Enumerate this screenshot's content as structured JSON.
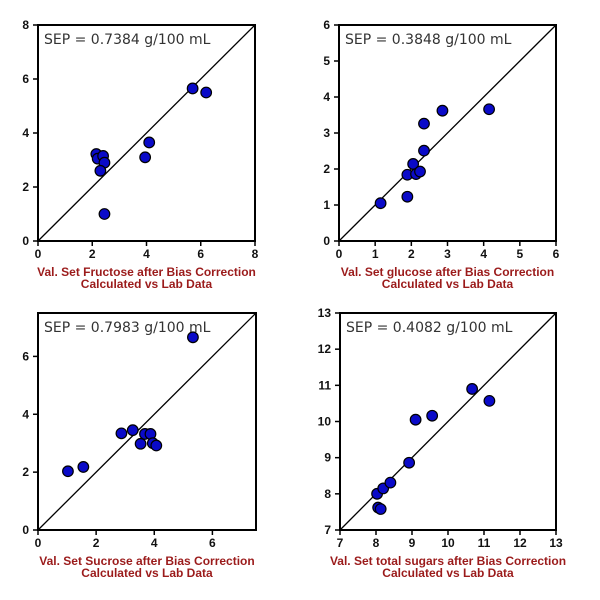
{
  "colors": {
    "marker_fill": "#0a0ac8",
    "marker_stroke": "#000000",
    "label": "#9b1b1b",
    "axis": "#000000"
  },
  "chart_data": [
    {
      "type": "scatter",
      "annotation": "SEP = 0.7384 g/100 mL",
      "xlabel": [
        "Val. Set Fructose after Bias Correction",
        "Calculated vs Lab Data"
      ],
      "ylabel": "",
      "xlim": [
        0,
        8
      ],
      "ylim": [
        0,
        8
      ],
      "xticks": [
        0,
        2,
        4,
        6,
        8
      ],
      "yticks": [
        0,
        2,
        4,
        6,
        8
      ],
      "identity_line": true,
      "grid": false,
      "x": [
        2.15,
        2.2,
        2.4,
        2.45,
        2.3,
        2.45,
        3.95,
        4.1,
        5.7,
        6.2
      ],
      "y": [
        3.22,
        3.05,
        3.15,
        2.9,
        2.6,
        1.0,
        3.1,
        3.65,
        5.65,
        5.5
      ]
    },
    {
      "type": "scatter",
      "annotation": "SEP = 0.3848 g/100 mL",
      "xlabel": [
        "Val. Set glucose after Bias Correction",
        "Calculated vs Lab Data"
      ],
      "ylabel": "",
      "xlim": [
        0,
        6
      ],
      "ylim": [
        0,
        6
      ],
      "xticks": [
        0,
        1,
        2,
        3,
        4,
        5,
        6
      ],
      "yticks": [
        0,
        1,
        2,
        3,
        4,
        5,
        6
      ],
      "identity_line": true,
      "grid": false,
      "x": [
        1.15,
        1.89,
        1.89,
        2.05,
        2.13,
        2.24,
        2.35,
        2.35,
        2.86,
        4.15
      ],
      "y": [
        1.05,
        1.23,
        1.84,
        2.14,
        1.86,
        1.93,
        2.51,
        3.26,
        3.62,
        3.66
      ]
    },
    {
      "type": "scatter",
      "annotation": "SEP = 0.7983 g/100 mL",
      "xlabel": [
        "Val. Set Sucrose after Bias Correction",
        "Calculated vs Lab Data"
      ],
      "ylabel": "",
      "xlim": [
        0,
        7.5
      ],
      "ylim": [
        0,
        7.5
      ],
      "xticks": [
        0,
        2,
        4,
        6
      ],
      "yticks": [
        0,
        2,
        4,
        6
      ],
      "identity_line": true,
      "grid": false,
      "x": [
        1.03,
        1.56,
        2.87,
        3.26,
        3.68,
        3.87,
        3.53,
        3.95,
        4.07,
        5.33
      ],
      "y": [
        2.03,
        2.18,
        3.34,
        3.45,
        3.32,
        3.32,
        2.98,
        3.0,
        2.92,
        6.66
      ]
    },
    {
      "type": "scatter",
      "annotation": "SEP = 0.4082 g/100 mL",
      "xlabel": [
        "Val. Set total sugars after Bias Correction",
        "Calculated vs Lab Data"
      ],
      "ylabel": "",
      "xlim": [
        7,
        13
      ],
      "ylim": [
        7,
        13
      ],
      "xticks": [
        7,
        8,
        9,
        10,
        11,
        12,
        13
      ],
      "yticks": [
        7,
        8,
        9,
        10,
        11,
        12,
        13
      ],
      "identity_line": true,
      "grid": false,
      "x": [
        8.03,
        8.2,
        8.4,
        8.06,
        8.13,
        8.92,
        9.1,
        9.56,
        10.67,
        11.15
      ],
      "y": [
        8.0,
        8.15,
        8.31,
        7.62,
        7.58,
        8.86,
        10.05,
        10.16,
        10.9,
        10.57
      ]
    }
  ]
}
